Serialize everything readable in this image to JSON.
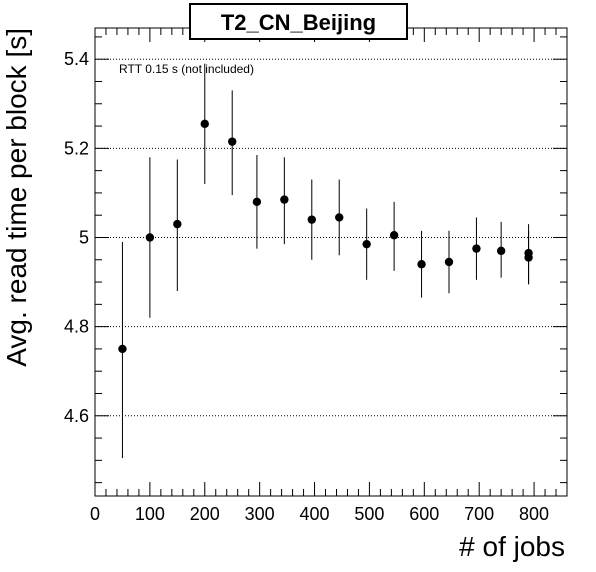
{
  "chart_data": {
    "type": "scatter",
    "title": "T2_CN_Beijing",
    "xlabel": "# of jobs",
    "ylabel": "Avg. read time per block [s]",
    "annotation": "RTT 0.15 s (not included)",
    "xlim": [
      0,
      860
    ],
    "ylim": [
      4.42,
      5.47
    ],
    "x_ticks": [
      0,
      100,
      200,
      300,
      400,
      500,
      600,
      700,
      800
    ],
    "y_ticks": [
      4.6,
      4.8,
      5,
      5.2,
      5.4
    ],
    "y_tick_labels": [
      "4.6",
      "4.8",
      "5",
      "5.2",
      "5.4"
    ],
    "grid": "horizontal dotted",
    "series": [
      {
        "points": [
          {
            "x": 50,
            "y": 4.75,
            "err_low": 4.505,
            "err_high": 4.99
          },
          {
            "x": 100,
            "y": 5.0,
            "err_low": 4.82,
            "err_high": 5.18
          },
          {
            "x": 150,
            "y": 5.03,
            "err_low": 4.88,
            "err_high": 5.175
          },
          {
            "x": 200,
            "y": 5.255,
            "err_low": 5.12,
            "err_high": 5.39
          },
          {
            "x": 250,
            "y": 5.215,
            "err_low": 5.095,
            "err_high": 5.33
          },
          {
            "x": 295,
            "y": 5.08,
            "err_low": 4.975,
            "err_high": 5.185
          },
          {
            "x": 345,
            "y": 5.085,
            "err_low": 4.985,
            "err_high": 5.18
          },
          {
            "x": 395,
            "y": 5.04,
            "err_low": 4.95,
            "err_high": 5.13
          },
          {
            "x": 445,
            "y": 5.045,
            "err_low": 4.96,
            "err_high": 5.13
          },
          {
            "x": 495,
            "y": 4.985,
            "err_low": 4.905,
            "err_high": 5.065
          },
          {
            "x": 545,
            "y": 5.005,
            "err_low": 4.925,
            "err_high": 5.08
          },
          {
            "x": 595,
            "y": 4.94,
            "err_low": 4.865,
            "err_high": 5.015
          },
          {
            "x": 645,
            "y": 4.945,
            "err_low": 4.875,
            "err_high": 5.015
          },
          {
            "x": 695,
            "y": 4.975,
            "err_low": 4.905,
            "err_high": 5.045
          },
          {
            "x": 740,
            "y": 4.97,
            "err_low": 4.91,
            "err_high": 5.035
          },
          {
            "x": 790,
            "y": 4.965,
            "err_low": 4.895,
            "err_high": 5.03
          },
          {
            "x": 790,
            "y": 4.955,
            "err_low": 4.895,
            "err_high": 5.015
          }
        ]
      }
    ]
  }
}
